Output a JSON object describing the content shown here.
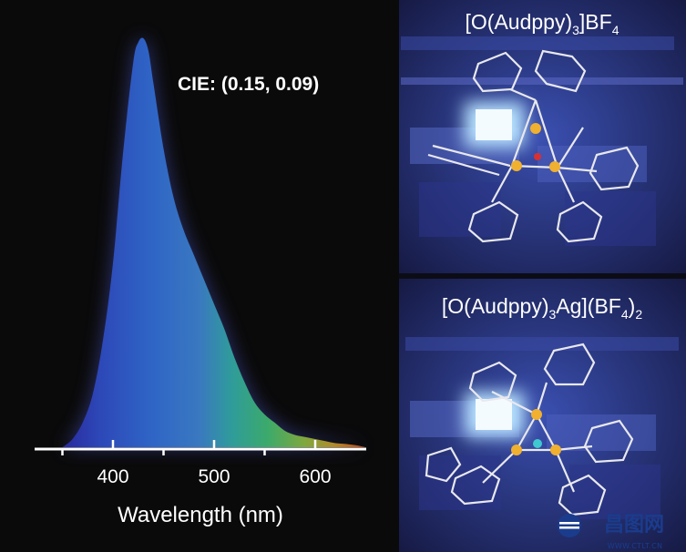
{
  "chart_data": {
    "type": "area",
    "title": "",
    "annotation": "CIE: (0.15, 0.09)",
    "xlabel": "Wavelength (nm)",
    "ylabel": "",
    "xlim": [
      325,
      650
    ],
    "ylim": [
      0,
      1.0
    ],
    "x_ticks_major": [
      400,
      500,
      600
    ],
    "x_ticks_minor": [
      350,
      450,
      550
    ],
    "grid": false,
    "legend": "none",
    "series": [
      {
        "x": [
          350,
          360,
          370,
          380,
          390,
          400,
          410,
          420,
          425,
          430,
          435,
          440,
          450,
          460,
          470,
          480,
          490,
          500,
          510,
          520,
          530,
          540,
          550,
          560,
          570,
          580,
          590,
          600,
          610,
          620,
          630,
          640,
          650
        ],
        "values": [
          0.0,
          0.02,
          0.06,
          0.13,
          0.26,
          0.45,
          0.72,
          0.94,
          0.99,
          1.0,
          0.97,
          0.89,
          0.73,
          0.61,
          0.53,
          0.47,
          0.41,
          0.35,
          0.29,
          0.22,
          0.16,
          0.11,
          0.08,
          0.06,
          0.04,
          0.03,
          0.025,
          0.02,
          0.015,
          0.01,
          0.008,
          0.005,
          0.0
        ]
      }
    ]
  },
  "panels": [
    {
      "title_base": "[O(Audppy)",
      "title_sub": "3",
      "title_mid": "]BF",
      "title_sub2": "4",
      "title_end": ""
    },
    {
      "title_base": "[O(Audppy)",
      "title_sub": "3",
      "title_mid": "Ag](BF",
      "title_sub2": "4",
      "title_end": ")",
      "title_sub3": "2"
    }
  ],
  "watermark": {
    "name": "昌图网",
    "url": "WWW.CTLT.CN"
  },
  "colors": {
    "background": "#0a0a0a",
    "axis": "#ffffff",
    "panel_bg": "#1e2150",
    "glow": "#e8f4ff",
    "gold_atom": "#f0b030",
    "bond": "#e8e8ee"
  }
}
